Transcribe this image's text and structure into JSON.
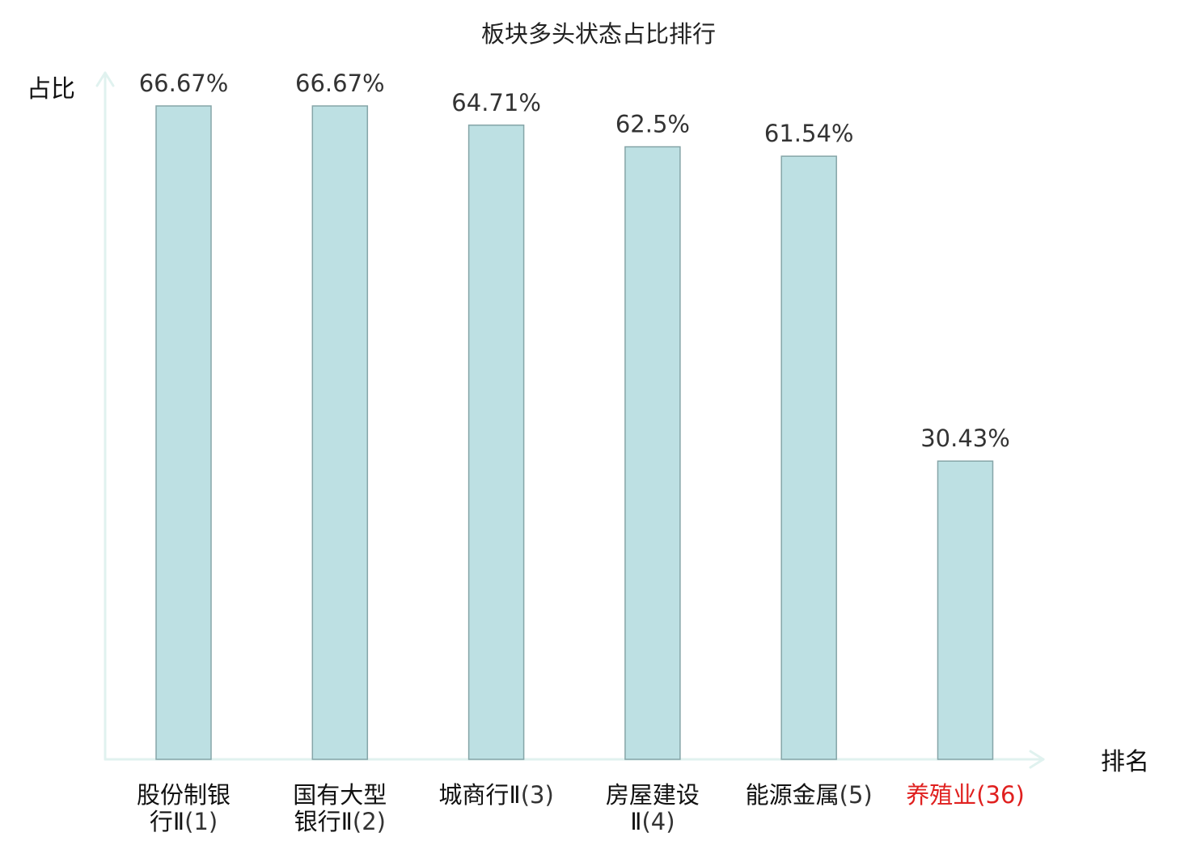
{
  "chart_data": {
    "type": "bar",
    "title": "板块多头状态占比排行",
    "ylabel": "占比",
    "xlabel": "排名",
    "categories": [
      {
        "name_lines": [
          "股份制银",
          "行Ⅱ"
        ],
        "rank": "(1)"
      },
      {
        "name_lines": [
          "国有大型",
          "银行Ⅱ"
        ],
        "rank": "(2)"
      },
      {
        "name_lines": [
          "城商行Ⅱ"
        ],
        "rank": "(3)"
      },
      {
        "name_lines": [
          "房屋建设",
          "Ⅱ"
        ],
        "rank": "(4)"
      },
      {
        "name_lines": [
          "能源金属"
        ],
        "rank": "(5)"
      },
      {
        "name_lines": [
          "养殖业"
        ],
        "rank": "(36)",
        "highlight": true
      }
    ],
    "values": [
      66.67,
      66.67,
      64.71,
      62.5,
      61.54,
      30.43
    ],
    "value_labels": [
      "66.67%",
      "66.67%",
      "64.71%",
      "62.5%",
      "61.54%",
      "30.43%"
    ],
    "ylim": [
      0,
      66.67
    ],
    "grid": false,
    "colors": {
      "bar_fill": "#bde0e3",
      "bar_stroke": "#86a5a8",
      "axis": "#e0f2ef",
      "highlight_text": "#e0201f",
      "text": "#111111"
    }
  }
}
